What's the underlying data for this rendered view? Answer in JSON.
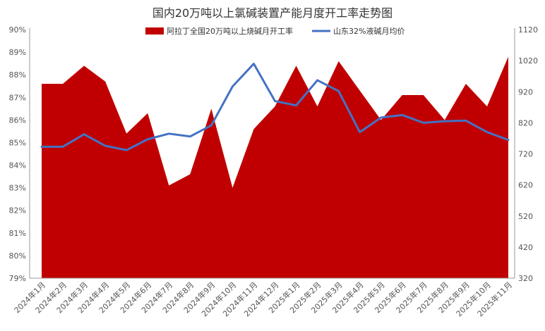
{
  "chart_data": {
    "type": "area+line",
    "title": "国内20万吨以上氯碱装置产能月度开工率走势图",
    "categories": [
      "2024年1月",
      "2024年2月",
      "2024年3月",
      "2024年4月",
      "2024年5月",
      "2024年6月",
      "2024年7月",
      "2024年8月",
      "2024年9月",
      "2024年10月",
      "2024年11月",
      "2024年12月",
      "2025年1月",
      "2025年2月",
      "2025年3月",
      "2025年4月",
      "2025年5月",
      "2025年6月",
      "2025年7月",
      "2025年8月",
      "2025年9月",
      "2025年10月",
      "2025年11月"
    ],
    "series": [
      {
        "name": "阿拉丁全国20万吨以上烧碱月开工率",
        "kind": "area",
        "axis": "left",
        "color": "#c00000",
        "values": [
          87.6,
          87.6,
          88.4,
          87.7,
          85.4,
          86.3,
          83.1,
          83.6,
          86.5,
          83.0,
          85.6,
          86.6,
          88.4,
          86.6,
          88.6,
          87.3,
          86.0,
          87.1,
          87.1,
          86.0,
          87.6,
          86.6,
          88.8
        ]
      },
      {
        "name": "山东32%液碱月均价",
        "kind": "line",
        "axis": "right",
        "color": "#4472c4",
        "values": [
          743,
          743,
          783,
          746,
          732,
          767,
          785,
          776,
          812,
          937,
          1010,
          890,
          876,
          957,
          922,
          790,
          837,
          845,
          820,
          825,
          827,
          790,
          765
        ]
      }
    ],
    "y_left": {
      "min": 79,
      "max": 90,
      "step": 1,
      "unit": "%"
    },
    "y_right": {
      "min": 320,
      "max": 1120,
      "step": 100
    },
    "legend_position": "top",
    "grid": false
  }
}
